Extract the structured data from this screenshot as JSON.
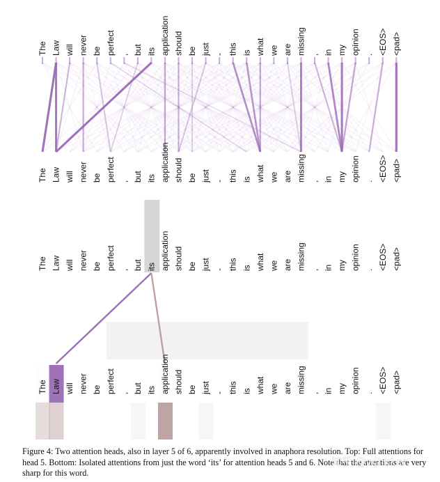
{
  "tokens": [
    "The",
    "Law",
    "will",
    "never",
    "be",
    "perfect",
    ",",
    "but",
    "its",
    "application",
    "should",
    "be",
    "just",
    "-",
    "this",
    "is",
    "what",
    "we",
    "are",
    "missing",
    ",",
    "in",
    "my",
    "opinion",
    ".",
    "<EOS>",
    "<pad>"
  ],
  "top_panel": {
    "title": "Full attentions for head 5",
    "strong_links": [
      {
        "from": 1,
        "to": 0,
        "w": 0.95
      },
      {
        "from": 1,
        "to": 1,
        "w": 0.9
      },
      {
        "from": 2,
        "to": 1,
        "w": 0.5
      },
      {
        "from": 8,
        "to": 1,
        "w": 0.95
      },
      {
        "from": 3,
        "to": 3,
        "w": 0.55
      },
      {
        "from": 4,
        "to": 5,
        "w": 0.4
      },
      {
        "from": 7,
        "to": 5,
        "w": 0.3
      },
      {
        "from": 9,
        "to": 9,
        "w": 0.6
      },
      {
        "from": 10,
        "to": 10,
        "w": 0.55
      },
      {
        "from": 11,
        "to": 11,
        "w": 0.35
      },
      {
        "from": 12,
        "to": 10,
        "w": 0.4
      },
      {
        "from": 14,
        "to": 16,
        "w": 0.75
      },
      {
        "from": 15,
        "to": 16,
        "w": 0.7
      },
      {
        "from": 16,
        "to": 16,
        "w": 0.6
      },
      {
        "from": 19,
        "to": 19,
        "w": 0.85
      },
      {
        "from": 21,
        "to": 22,
        "w": 0.8
      },
      {
        "from": 22,
        "to": 22,
        "w": 0.9
      },
      {
        "from": 23,
        "to": 22,
        "w": 0.6
      },
      {
        "from": 25,
        "to": 24,
        "w": 0.55
      },
      {
        "from": 26,
        "to": 26,
        "w": 0.95
      },
      {
        "from": 20,
        "to": 22,
        "w": 0.5
      },
      {
        "from": 5,
        "to": 15,
        "w": 0.25
      },
      {
        "from": 6,
        "to": 19,
        "w": 0.25
      },
      {
        "from": 18,
        "to": 19,
        "w": 0.35
      }
    ]
  },
  "bottom_panel": {
    "title": "Isolated attentions from 'its'",
    "highlight_token": 8,
    "links": [
      {
        "from": 8,
        "to": 1,
        "head": "head5",
        "w": 0.95
      },
      {
        "from": 8,
        "to": 9,
        "head": "head6",
        "w": 0.9
      }
    ],
    "target_bars": [
      {
        "index": 0,
        "head5": 0.02,
        "head6": 0.35
      },
      {
        "index": 1,
        "head5": 0.95,
        "head6": 0.45
      },
      {
        "index": 9,
        "head5": 0.02,
        "head6": 0.9
      }
    ]
  },
  "colors": {
    "head5": "#9b6ab5",
    "head6": "#b89a9a",
    "highlight": "#d6d6d6",
    "faint_band": "#f2f2f2",
    "text": "#111111"
  },
  "caption": "Figure 4: Two attention heads, also in layer 5 of 6, apparently involved in anaphora resolution. Top: Full attentions for head 5. Bottom: Isolated attentions from just the word ‘its’ for attention heads 5 and 6. Note that the attentions are very sharp for this word.",
  "watermark": "知乎 @wjhkker"
}
